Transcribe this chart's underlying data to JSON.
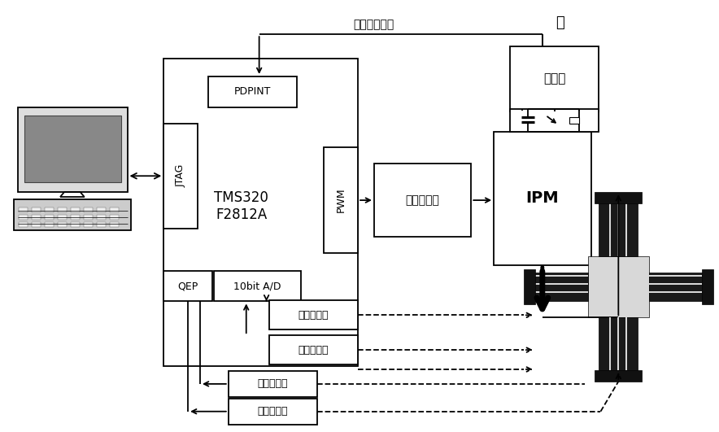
{
  "bg_color": "#ffffff",
  "fault_label": "故障保护信号",
  "tilde": "～",
  "dsp_label": "TMS320\nF2812A",
  "pdpint_label": "PDPINT",
  "jtag_label": "JTAG",
  "pwm_label": "PWM",
  "qep_label": "QEP",
  "adc_label": "10bit A/D",
  "opto_label": "光电耦合器",
  "ipm_label": "IPM",
  "rect_label": "整流器",
  "cur1_label": "电流传感器",
  "cur2_label": "电流传感器",
  "lin1_label": "直线光栅尺",
  "lin2_label": "直线光栅尺",
  "font_cn": "SimHei",
  "font_en": "DejaVu Sans"
}
